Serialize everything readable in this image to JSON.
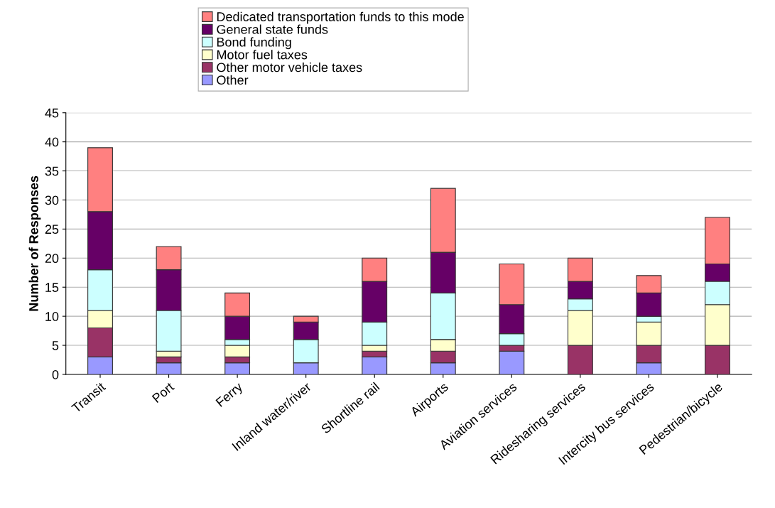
{
  "chart_data": {
    "type": "bar",
    "stacked": true,
    "ylabel": "Number of Responses",
    "categories": [
      "Transit",
      "Port",
      "Ferry",
      "Inland water/river",
      "Shortline rail",
      "Airports",
      "Aviation services",
      "Ridesharing services",
      "Intercity bus services",
      "Pedestrian/bicycle"
    ],
    "series": [
      {
        "name": "Other",
        "color": "#9999ff",
        "values": [
          3,
          2,
          2,
          2,
          3,
          2,
          4,
          0,
          2,
          0
        ]
      },
      {
        "name": "Other motor vehicle taxes",
        "color": "#993366",
        "values": [
          5,
          1,
          1,
          0,
          1,
          2,
          1,
          5,
          3,
          5
        ]
      },
      {
        "name": "Motor fuel taxes",
        "color": "#ffffcc",
        "values": [
          3,
          1,
          2,
          0,
          1,
          2,
          0,
          6,
          4,
          7
        ]
      },
      {
        "name": "Bond funding",
        "color": "#ccffff",
        "values": [
          7,
          7,
          1,
          4,
          4,
          8,
          2,
          2,
          1,
          4
        ]
      },
      {
        "name": "General state funds",
        "color": "#660066",
        "values": [
          10,
          7,
          4,
          3,
          7,
          7,
          5,
          3,
          4,
          3
        ]
      },
      {
        "name": "Dedicated transportation funds to this mode",
        "color": "#ff8080",
        "values": [
          11,
          4,
          4,
          1,
          4,
          11,
          7,
          4,
          3,
          8
        ]
      }
    ],
    "ylim": [
      0,
      45
    ],
    "yticks": [
      0,
      5,
      10,
      15,
      20,
      25,
      30,
      35,
      40,
      45
    ],
    "grid": "y",
    "legend": "top"
  }
}
